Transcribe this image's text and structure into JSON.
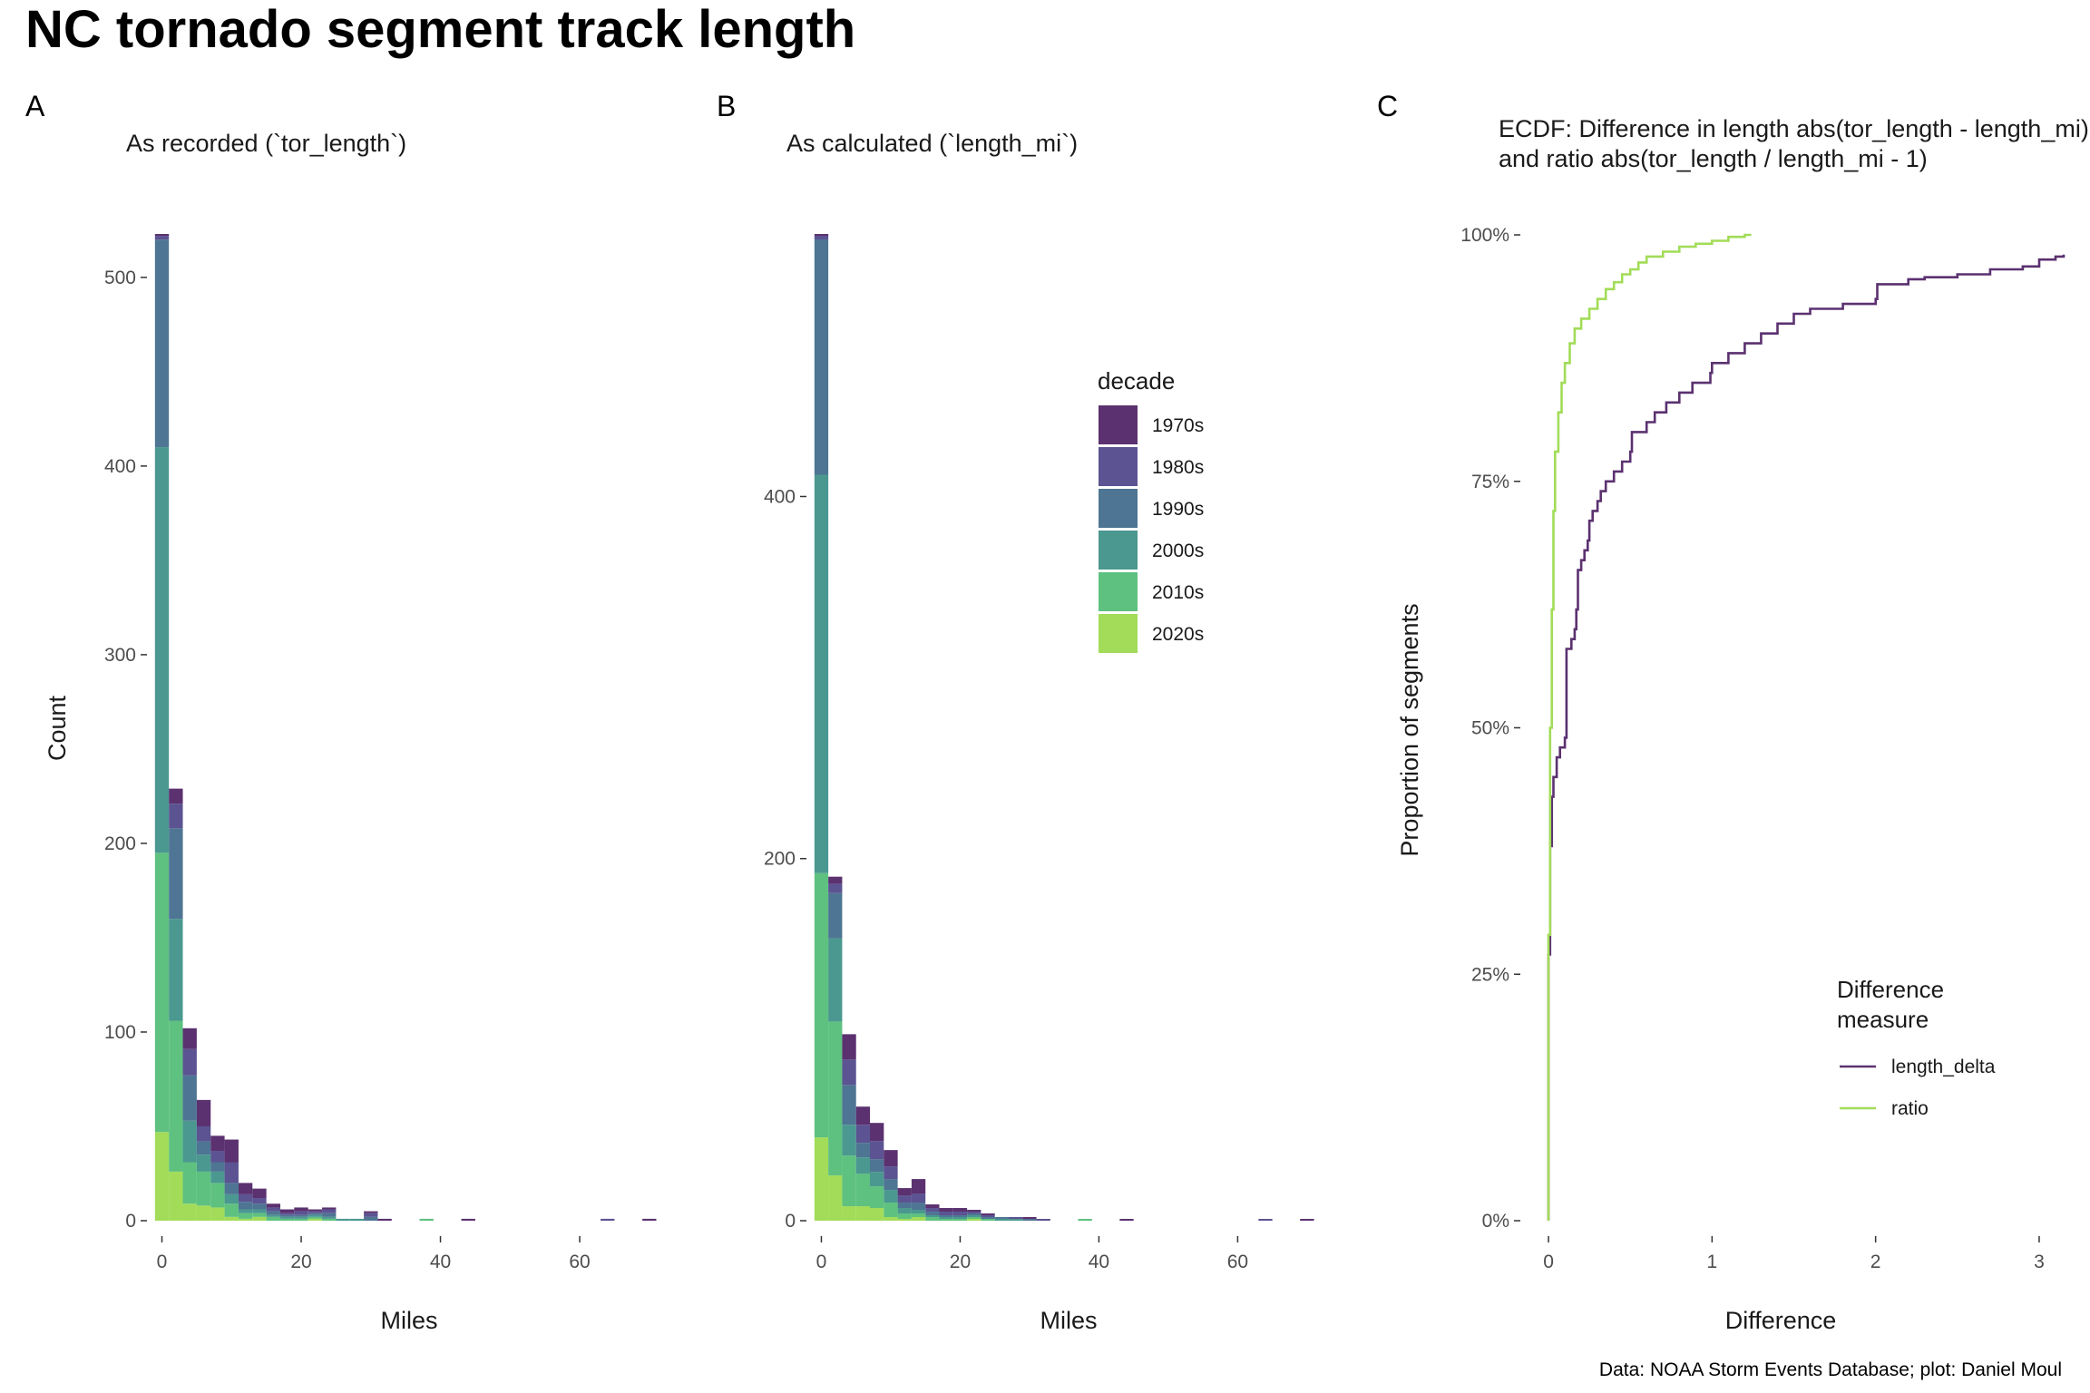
{
  "page": {
    "title": "NC tornado segment track length",
    "caption": "Data: NOAA Storm Events Database; plot: Daniel Moul"
  },
  "colors": {
    "1970s": "#5b3170",
    "1980s": "#5b5392",
    "1990s": "#4e7593",
    "2000s": "#4a9890",
    "2010s": "#5ec180",
    "2020s": "#a2dc58",
    "length_delta": "#5b3170",
    "ratio": "#a2dc58"
  },
  "legend_decade": {
    "title": "decade",
    "items": [
      "1970s",
      "1980s",
      "1990s",
      "2000s",
      "2010s",
      "2020s"
    ]
  },
  "legend_measure": {
    "title_line1": "Difference",
    "title_line2": "measure",
    "items": [
      "length_delta",
      "ratio"
    ]
  },
  "chart_data": [
    {
      "panel": "A",
      "type": "bar",
      "stacked": true,
      "title": "As recorded (`tor_length`)",
      "xlabel": "Miles",
      "ylabel": "Count",
      "xlim": [
        -1.5,
        72.5
      ],
      "ylim": [
        0,
        523
      ],
      "xticks": [
        0,
        20,
        40,
        60
      ],
      "yticks": [
        0,
        100,
        200,
        300,
        400,
        500
      ],
      "bin_width": 2,
      "bins": [
        {
          "x": 0,
          "counts": {
            "2020s": 47,
            "2010s": 148,
            "2000s": 215,
            "1990s": 110,
            "1980s": 2,
            "1970s": 1
          }
        },
        {
          "x": 2,
          "counts": {
            "2020s": 26,
            "2010s": 80,
            "2000s": 54,
            "1990s": 48,
            "1980s": 13,
            "1970s": 8
          }
        },
        {
          "x": 4,
          "counts": {
            "2020s": 9,
            "2010s": 22,
            "2000s": 22,
            "1990s": 24,
            "1980s": 14,
            "1970s": 11
          }
        },
        {
          "x": 6,
          "counts": {
            "2020s": 8,
            "2010s": 18,
            "2000s": 9,
            "1990s": 7,
            "1980s": 8,
            "1970s": 14
          }
        },
        {
          "x": 8,
          "counts": {
            "2020s": 7,
            "2010s": 13,
            "2000s": 6,
            "1990s": 5,
            "1980s": 6,
            "1970s": 8
          }
        },
        {
          "x": 10,
          "counts": {
            "2020s": 2,
            "2010s": 7,
            "2000s": 5,
            "1990s": 6,
            "1980s": 11,
            "1970s": 12
          }
        },
        {
          "x": 12,
          "counts": {
            "2020s": 1,
            "2010s": 3,
            "2000s": 2,
            "1990s": 4,
            "1980s": 4,
            "1970s": 6
          }
        },
        {
          "x": 14,
          "counts": {
            "2020s": 2,
            "2010s": 2,
            "2000s": 2,
            "1990s": 3,
            "1980s": 3,
            "1970s": 5
          }
        },
        {
          "x": 16,
          "counts": {
            "2020s": 0,
            "2010s": 2,
            "2000s": 1,
            "1990s": 2,
            "1980s": 2,
            "1970s": 2
          }
        },
        {
          "x": 18,
          "counts": {
            "2020s": 0,
            "2010s": 1,
            "2000s": 1,
            "1990s": 1,
            "1980s": 1,
            "1970s": 2
          }
        },
        {
          "x": 20,
          "counts": {
            "2020s": 0,
            "2010s": 1,
            "2000s": 1,
            "1990s": 1,
            "1980s": 2,
            "1970s": 2
          }
        },
        {
          "x": 22,
          "counts": {
            "2020s": 1,
            "2010s": 1,
            "2000s": 1,
            "1990s": 1,
            "1980s": 1,
            "1970s": 1
          }
        },
        {
          "x": 24,
          "counts": {
            "2020s": 0,
            "2010s": 1,
            "2000s": 1,
            "1990s": 2,
            "1980s": 2,
            "1970s": 1
          }
        },
        {
          "x": 26,
          "counts": {
            "2020s": 0,
            "2010s": 0,
            "2000s": 1,
            "1990s": 0,
            "1980s": 0,
            "1970s": 0
          }
        },
        {
          "x": 28,
          "counts": {
            "2020s": 0,
            "2010s": 0,
            "2000s": 1,
            "1990s": 0,
            "1980s": 0,
            "1970s": 0
          }
        },
        {
          "x": 30,
          "counts": {
            "2020s": 0,
            "2010s": 0,
            "2000s": 0,
            "1990s": 2,
            "1980s": 2,
            "1970s": 1
          }
        },
        {
          "x": 32,
          "counts": {
            "2020s": 0,
            "2010s": 0,
            "2000s": 0,
            "1990s": 0,
            "1980s": 0,
            "1970s": 1
          }
        },
        {
          "x": 38,
          "counts": {
            "2020s": 0,
            "2010s": 1,
            "2000s": 0,
            "1990s": 0,
            "1980s": 0,
            "1970s": 0
          }
        },
        {
          "x": 44,
          "counts": {
            "2020s": 0,
            "2010s": 0,
            "2000s": 0,
            "1990s": 0,
            "1980s": 0,
            "1970s": 1
          }
        },
        {
          "x": 64,
          "counts": {
            "2020s": 0,
            "2010s": 0,
            "2000s": 0,
            "1990s": 0,
            "1980s": 1,
            "1970s": 0
          }
        },
        {
          "x": 70,
          "counts": {
            "2020s": 0,
            "2010s": 0,
            "2000s": 0,
            "1990s": 0,
            "1980s": 0,
            "1970s": 1
          }
        }
      ]
    },
    {
      "panel": "B",
      "type": "bar",
      "stacked": true,
      "title": "As calculated (`length_mi`)",
      "xlabel": "Miles",
      "ylabel": "",
      "xlim": [
        -1.5,
        72.5
      ],
      "ylim": [
        0,
        545
      ],
      "xticks": [
        0,
        20,
        40,
        60
      ],
      "yticks": [
        0,
        200,
        400
      ],
      "bin_width": 2,
      "bins": [
        {
          "x": 0,
          "counts": {
            "2020s": 46,
            "2010s": 146,
            "2000s": 220,
            "1990s": 130,
            "1980s": 2,
            "1970s": 1
          }
        },
        {
          "x": 2,
          "counts": {
            "2020s": 25,
            "2010s": 85,
            "2000s": 46,
            "1990s": 25,
            "1980s": 5,
            "1970s": 4
          }
        },
        {
          "x": 4,
          "counts": {
            "2020s": 8,
            "2010s": 28,
            "2000s": 17,
            "1990s": 22,
            "1980s": 14,
            "1970s": 14
          }
        },
        {
          "x": 6,
          "counts": {
            "2020s": 8,
            "2010s": 18,
            "2000s": 9,
            "1990s": 8,
            "1980s": 10,
            "1970s": 10
          }
        },
        {
          "x": 8,
          "counts": {
            "2020s": 7,
            "2010s": 12,
            "2000s": 8,
            "1990s": 7,
            "1980s": 10,
            "1970s": 10
          }
        },
        {
          "x": 10,
          "counts": {
            "2020s": 2,
            "2010s": 8,
            "2000s": 7,
            "1990s": 6,
            "1980s": 7,
            "1970s": 9
          }
        },
        {
          "x": 12,
          "counts": {
            "2020s": 1,
            "2010s": 3,
            "2000s": 3,
            "1990s": 3,
            "1980s": 4,
            "1970s": 4
          }
        },
        {
          "x": 14,
          "counts": {
            "2020s": 2,
            "2010s": 2,
            "2000s": 2,
            "1990s": 4,
            "1980s": 5,
            "1970s": 8
          }
        },
        {
          "x": 16,
          "counts": {
            "2020s": 0,
            "2010s": 2,
            "2000s": 1,
            "1990s": 2,
            "1980s": 2,
            "1970s": 2
          }
        },
        {
          "x": 18,
          "counts": {
            "2020s": 0,
            "2010s": 1,
            "2000s": 1,
            "1990s": 1,
            "1980s": 2,
            "1970s": 2
          }
        },
        {
          "x": 20,
          "counts": {
            "2020s": 0,
            "2010s": 1,
            "2000s": 1,
            "1990s": 1,
            "1980s": 2,
            "1970s": 2
          }
        },
        {
          "x": 22,
          "counts": {
            "2020s": 1,
            "2010s": 1,
            "2000s": 1,
            "1990s": 1,
            "1980s": 1,
            "1970s": 1
          }
        },
        {
          "x": 24,
          "counts": {
            "2020s": 0,
            "2010s": 1,
            "2000s": 0,
            "1990s": 1,
            "1980s": 1,
            "1970s": 1
          }
        },
        {
          "x": 26,
          "counts": {
            "2020s": 0,
            "2010s": 0,
            "2000s": 1,
            "1990s": 1,
            "1980s": 0,
            "1970s": 0
          }
        },
        {
          "x": 28,
          "counts": {
            "2020s": 0,
            "2010s": 0,
            "2000s": 1,
            "1990s": 0,
            "1980s": 1,
            "1970s": 0
          }
        },
        {
          "x": 30,
          "counts": {
            "2020s": 0,
            "2010s": 0,
            "2000s": 0,
            "1990s": 1,
            "1980s": 0,
            "1970s": 1
          }
        },
        {
          "x": 32,
          "counts": {
            "2020s": 0,
            "2010s": 0,
            "2000s": 0,
            "1990s": 0,
            "1980s": 1,
            "1970s": 0
          }
        },
        {
          "x": 38,
          "counts": {
            "2020s": 0,
            "2010s": 1,
            "2000s": 0,
            "1990s": 0,
            "1980s": 0,
            "1970s": 0
          }
        },
        {
          "x": 44,
          "counts": {
            "2020s": 0,
            "2010s": 0,
            "2000s": 0,
            "1990s": 0,
            "1980s": 0,
            "1970s": 1
          }
        },
        {
          "x": 64,
          "counts": {
            "2020s": 0,
            "2010s": 0,
            "2000s": 0,
            "1990s": 0,
            "1980s": 1,
            "1970s": 0
          }
        },
        {
          "x": 70,
          "counts": {
            "2020s": 0,
            "2010s": 0,
            "2000s": 0,
            "1990s": 0,
            "1980s": 0,
            "1970s": 1
          }
        }
      ]
    },
    {
      "panel": "C",
      "type": "line",
      "step": true,
      "title_line1": "ECDF: Difference in length abs(tor_length - length_mi)",
      "title_line2": "and  ratio abs(tor_length / length_mi - 1)",
      "xlabel": "Difference",
      "ylabel": "Proportion of segments",
      "xlim": [
        -0.15,
        3.15
      ],
      "ylim": [
        0,
        1
      ],
      "xticks": [
        0,
        1,
        2,
        3
      ],
      "yticks": [
        0,
        0.25,
        0.5,
        0.75,
        1
      ],
      "ytick_labels": [
        "0%",
        "25%",
        "50%",
        "75%",
        "100%"
      ],
      "series": [
        {
          "name": "length_delta",
          "points": [
            [
              0.0,
              0.0
            ],
            [
              0.0,
              0.27
            ],
            [
              0.01,
              0.38
            ],
            [
              0.02,
              0.43
            ],
            [
              0.03,
              0.45
            ],
            [
              0.05,
              0.47
            ],
            [
              0.07,
              0.48
            ],
            [
              0.1,
              0.49
            ],
            [
              0.11,
              0.58
            ],
            [
              0.14,
              0.59
            ],
            [
              0.16,
              0.6
            ],
            [
              0.17,
              0.62
            ],
            [
              0.18,
              0.66
            ],
            [
              0.2,
              0.67
            ],
            [
              0.22,
              0.68
            ],
            [
              0.24,
              0.69
            ],
            [
              0.25,
              0.71
            ],
            [
              0.27,
              0.72
            ],
            [
              0.3,
              0.73
            ],
            [
              0.32,
              0.74
            ],
            [
              0.35,
              0.75
            ],
            [
              0.4,
              0.76
            ],
            [
              0.45,
              0.77
            ],
            [
              0.5,
              0.78
            ],
            [
              0.51,
              0.8
            ],
            [
              0.6,
              0.81
            ],
            [
              0.65,
              0.82
            ],
            [
              0.72,
              0.83
            ],
            [
              0.8,
              0.84
            ],
            [
              0.88,
              0.85
            ],
            [
              0.99,
              0.86
            ],
            [
              1.0,
              0.87
            ],
            [
              1.1,
              0.88
            ],
            [
              1.2,
              0.89
            ],
            [
              1.3,
              0.9
            ],
            [
              1.4,
              0.91
            ],
            [
              1.5,
              0.92
            ],
            [
              1.6,
              0.925
            ],
            [
              1.8,
              0.93
            ],
            [
              2.0,
              0.935
            ],
            [
              2.01,
              0.95
            ],
            [
              2.2,
              0.955
            ],
            [
              2.3,
              0.957
            ],
            [
              2.5,
              0.96
            ],
            [
              2.7,
              0.965
            ],
            [
              2.9,
              0.968
            ],
            [
              3.0,
              0.975
            ],
            [
              3.1,
              0.978
            ],
            [
              3.15,
              0.98
            ]
          ]
        },
        {
          "name": "ratio",
          "points": [
            [
              0.0,
              0.0
            ],
            [
              0.0,
              0.29
            ],
            [
              0.01,
              0.5
            ],
            [
              0.02,
              0.62
            ],
            [
              0.03,
              0.72
            ],
            [
              0.04,
              0.78
            ],
            [
              0.06,
              0.82
            ],
            [
              0.08,
              0.85
            ],
            [
              0.1,
              0.87
            ],
            [
              0.13,
              0.89
            ],
            [
              0.16,
              0.905
            ],
            [
              0.2,
              0.915
            ],
            [
              0.25,
              0.925
            ],
            [
              0.3,
              0.935
            ],
            [
              0.35,
              0.945
            ],
            [
              0.4,
              0.952
            ],
            [
              0.45,
              0.96
            ],
            [
              0.5,
              0.965
            ],
            [
              0.55,
              0.972
            ],
            [
              0.6,
              0.978
            ],
            [
              0.7,
              0.983
            ],
            [
              0.8,
              0.988
            ],
            [
              0.9,
              0.991
            ],
            [
              1.0,
              0.994
            ],
            [
              1.1,
              0.998
            ],
            [
              1.2,
              1.0
            ],
            [
              1.24,
              1.0
            ]
          ]
        }
      ]
    }
  ]
}
